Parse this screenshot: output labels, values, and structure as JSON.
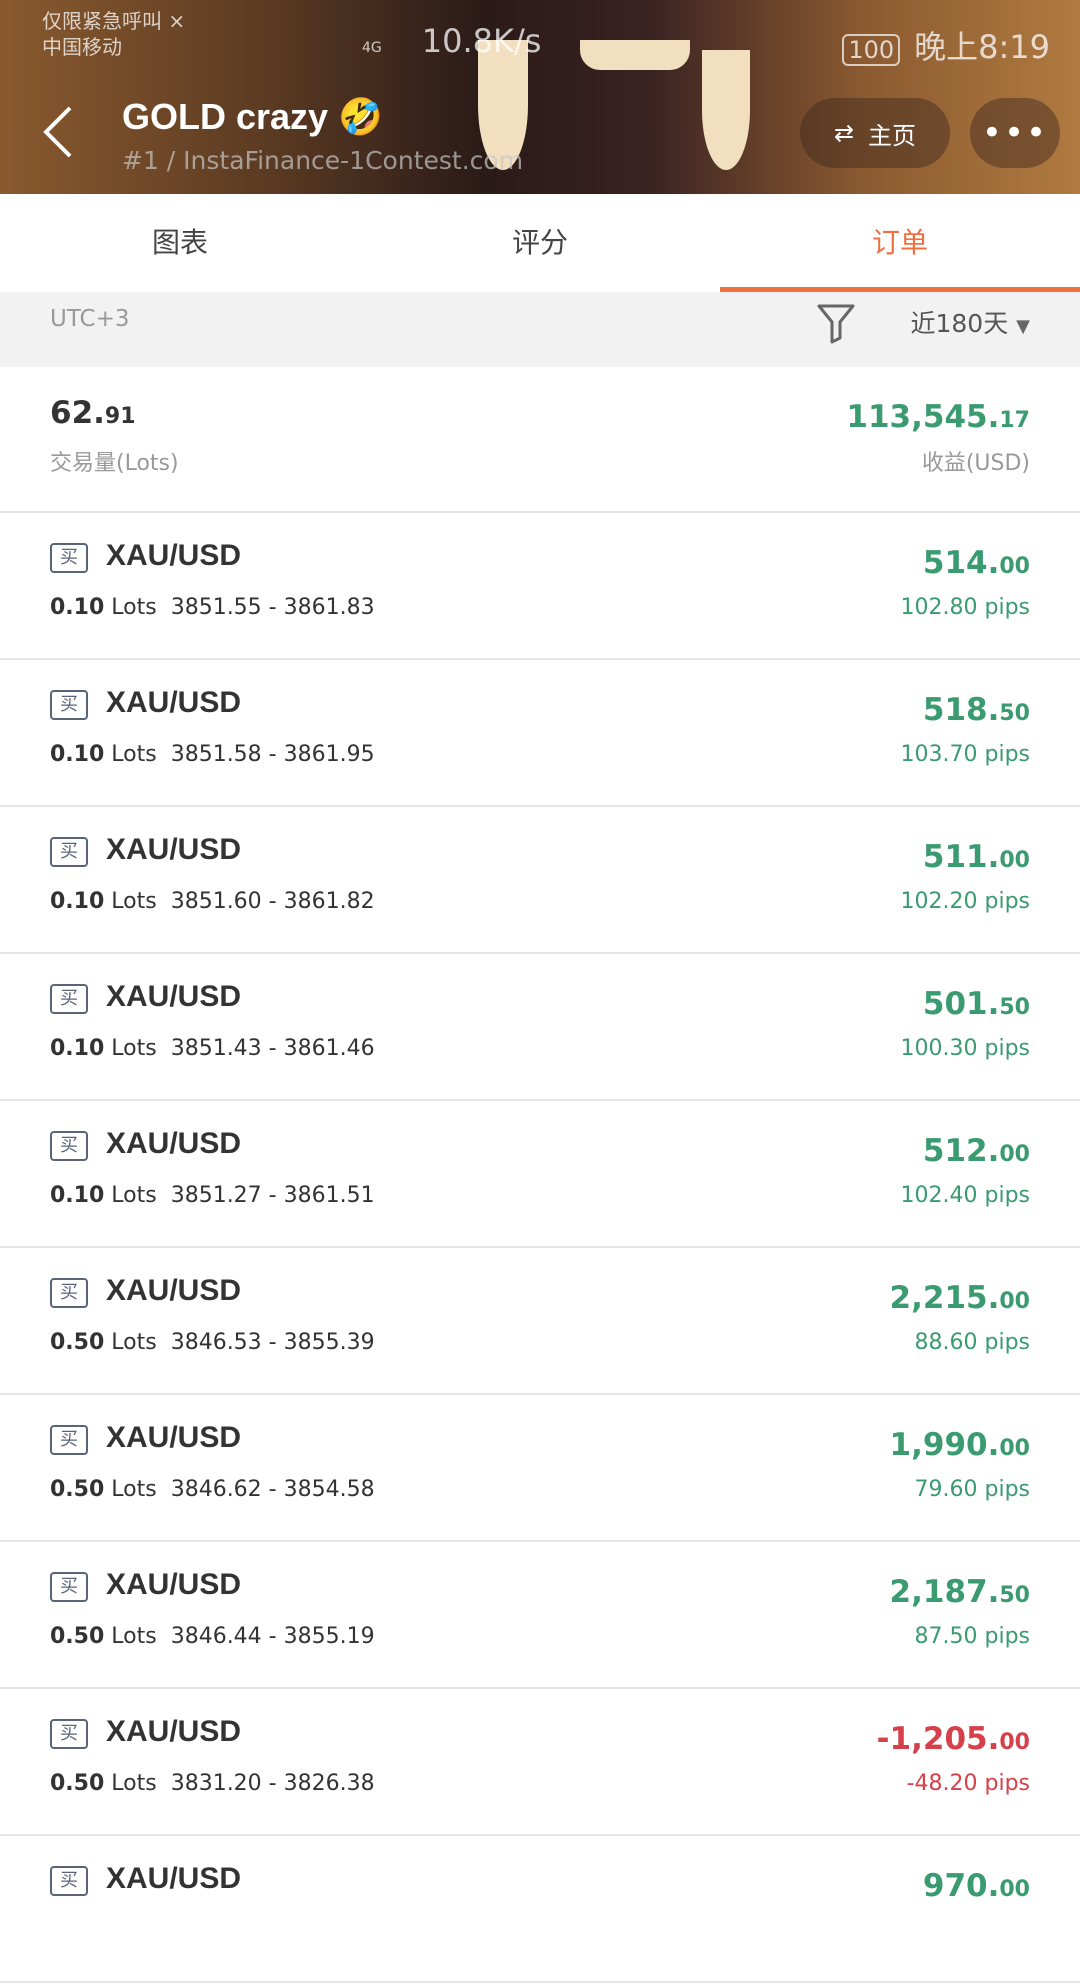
{
  "status_bar": {
    "carrier_line1": "仅限紧急呼叫 ×",
    "carrier_line2": "中国移动",
    "net": "4G",
    "speed": "10.8K/s",
    "battery": "100",
    "time": "晚上8:19"
  },
  "header": {
    "title": "GOLD crazy 🤣",
    "subtitle": "#1 / InstaFinance-1Contest.com",
    "home_label": "主页",
    "more_label": "•••"
  },
  "tabs": [
    {
      "label": "图表"
    },
    {
      "label": "评分"
    },
    {
      "label": "订单",
      "active": true
    }
  ],
  "filter": {
    "timezone": "UTC+3",
    "range": "近180天"
  },
  "summary": {
    "volume_int": "62.",
    "volume_dec": "91",
    "volume_label": "交易量(Lots)",
    "profit_int": "113,545.",
    "profit_dec": "17",
    "profit_label": "收益(USD)"
  },
  "colors": {
    "accent": "#f07040",
    "positive": "#3a9a70",
    "negative": "#d6404a"
  },
  "orders": [
    {
      "side": "买",
      "symbol": "XAU/USD",
      "lots": "0.10",
      "lots_unit": "Lots",
      "prices": "3851.55 - 3861.83",
      "profit_int": "514.",
      "profit_dec": "00",
      "pips": "102.80 pips",
      "sign": "pos"
    },
    {
      "side": "买",
      "symbol": "XAU/USD",
      "lots": "0.10",
      "lots_unit": "Lots",
      "prices": "3851.58 - 3861.95",
      "profit_int": "518.",
      "profit_dec": "50",
      "pips": "103.70 pips",
      "sign": "pos"
    },
    {
      "side": "买",
      "symbol": "XAU/USD",
      "lots": "0.10",
      "lots_unit": "Lots",
      "prices": "3851.60 - 3861.82",
      "profit_int": "511.",
      "profit_dec": "00",
      "pips": "102.20 pips",
      "sign": "pos"
    },
    {
      "side": "买",
      "symbol": "XAU/USD",
      "lots": "0.10",
      "lots_unit": "Lots",
      "prices": "3851.43 - 3861.46",
      "profit_int": "501.",
      "profit_dec": "50",
      "pips": "100.30 pips",
      "sign": "pos"
    },
    {
      "side": "买",
      "symbol": "XAU/USD",
      "lots": "0.10",
      "lots_unit": "Lots",
      "prices": "3851.27 - 3861.51",
      "profit_int": "512.",
      "profit_dec": "00",
      "pips": "102.40 pips",
      "sign": "pos"
    },
    {
      "side": "买",
      "symbol": "XAU/USD",
      "lots": "0.50",
      "lots_unit": "Lots",
      "prices": "3846.53 - 3855.39",
      "profit_int": "2,215.",
      "profit_dec": "00",
      "pips": "88.60 pips",
      "sign": "pos"
    },
    {
      "side": "买",
      "symbol": "XAU/USD",
      "lots": "0.50",
      "lots_unit": "Lots",
      "prices": "3846.62 - 3854.58",
      "profit_int": "1,990.",
      "profit_dec": "00",
      "pips": "79.60 pips",
      "sign": "pos"
    },
    {
      "side": "买",
      "symbol": "XAU/USD",
      "lots": "0.50",
      "lots_unit": "Lots",
      "prices": "3846.44 - 3855.19",
      "profit_int": "2,187.",
      "profit_dec": "50",
      "pips": "87.50 pips",
      "sign": "pos"
    },
    {
      "side": "买",
      "symbol": "XAU/USD",
      "lots": "0.50",
      "lots_unit": "Lots",
      "prices": "3831.20 - 3826.38",
      "profit_int": "-1,205.",
      "profit_dec": "00",
      "pips": "-48.20 pips",
      "sign": "neg"
    },
    {
      "side": "买",
      "symbol": "XAU/USD",
      "profit_int": "970.",
      "profit_dec": "00",
      "sign": "pos"
    }
  ]
}
